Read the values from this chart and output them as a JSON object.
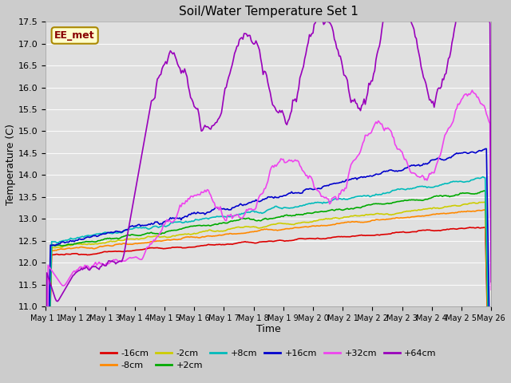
{
  "title": "Soil/Water Temperature Set 1",
  "xlabel": "Time",
  "ylabel": "Temperature (C)",
  "ylim": [
    11.0,
    17.5
  ],
  "xlim": [
    0,
    375
  ],
  "annotation_text": "EE_met",
  "annotation_bg": "#ffffcc",
  "annotation_border": "#aa8800",
  "annotation_text_color": "#880000",
  "xtick_labels": [
    "May 1 1",
    "May 1 2",
    "May 1 3",
    "May 1 4",
    "May 1 5",
    "May 1 6",
    "May 1 7",
    "May 1 8",
    "May 1 9",
    "May 2 0",
    "May 2 1",
    "May 2 2",
    "May 2 3",
    "May 2 4",
    "May 2 5",
    "May 26"
  ],
  "xtick_positions": [
    0,
    25,
    50,
    75,
    100,
    125,
    150,
    175,
    200,
    225,
    250,
    275,
    300,
    325,
    350,
    375
  ],
  "ytick_values": [
    11.0,
    11.5,
    12.0,
    12.5,
    13.0,
    13.5,
    14.0,
    14.5,
    15.0,
    15.5,
    16.0,
    16.5,
    17.0,
    17.5
  ],
  "series_order": [
    "-16cm",
    "-8cm",
    "-2cm",
    "+2cm",
    "+8cm",
    "+16cm",
    "+32cm",
    "+64cm"
  ],
  "series_colors": {
    "-16cm": "#dd0000",
    "-8cm": "#ff8800",
    "-2cm": "#cccc00",
    "+2cm": "#00aa00",
    "+8cm": "#00bbbb",
    "+16cm": "#0000cc",
    "+32cm": "#ee44ee",
    "+64cm": "#9900bb"
  },
  "lw": 1.2
}
